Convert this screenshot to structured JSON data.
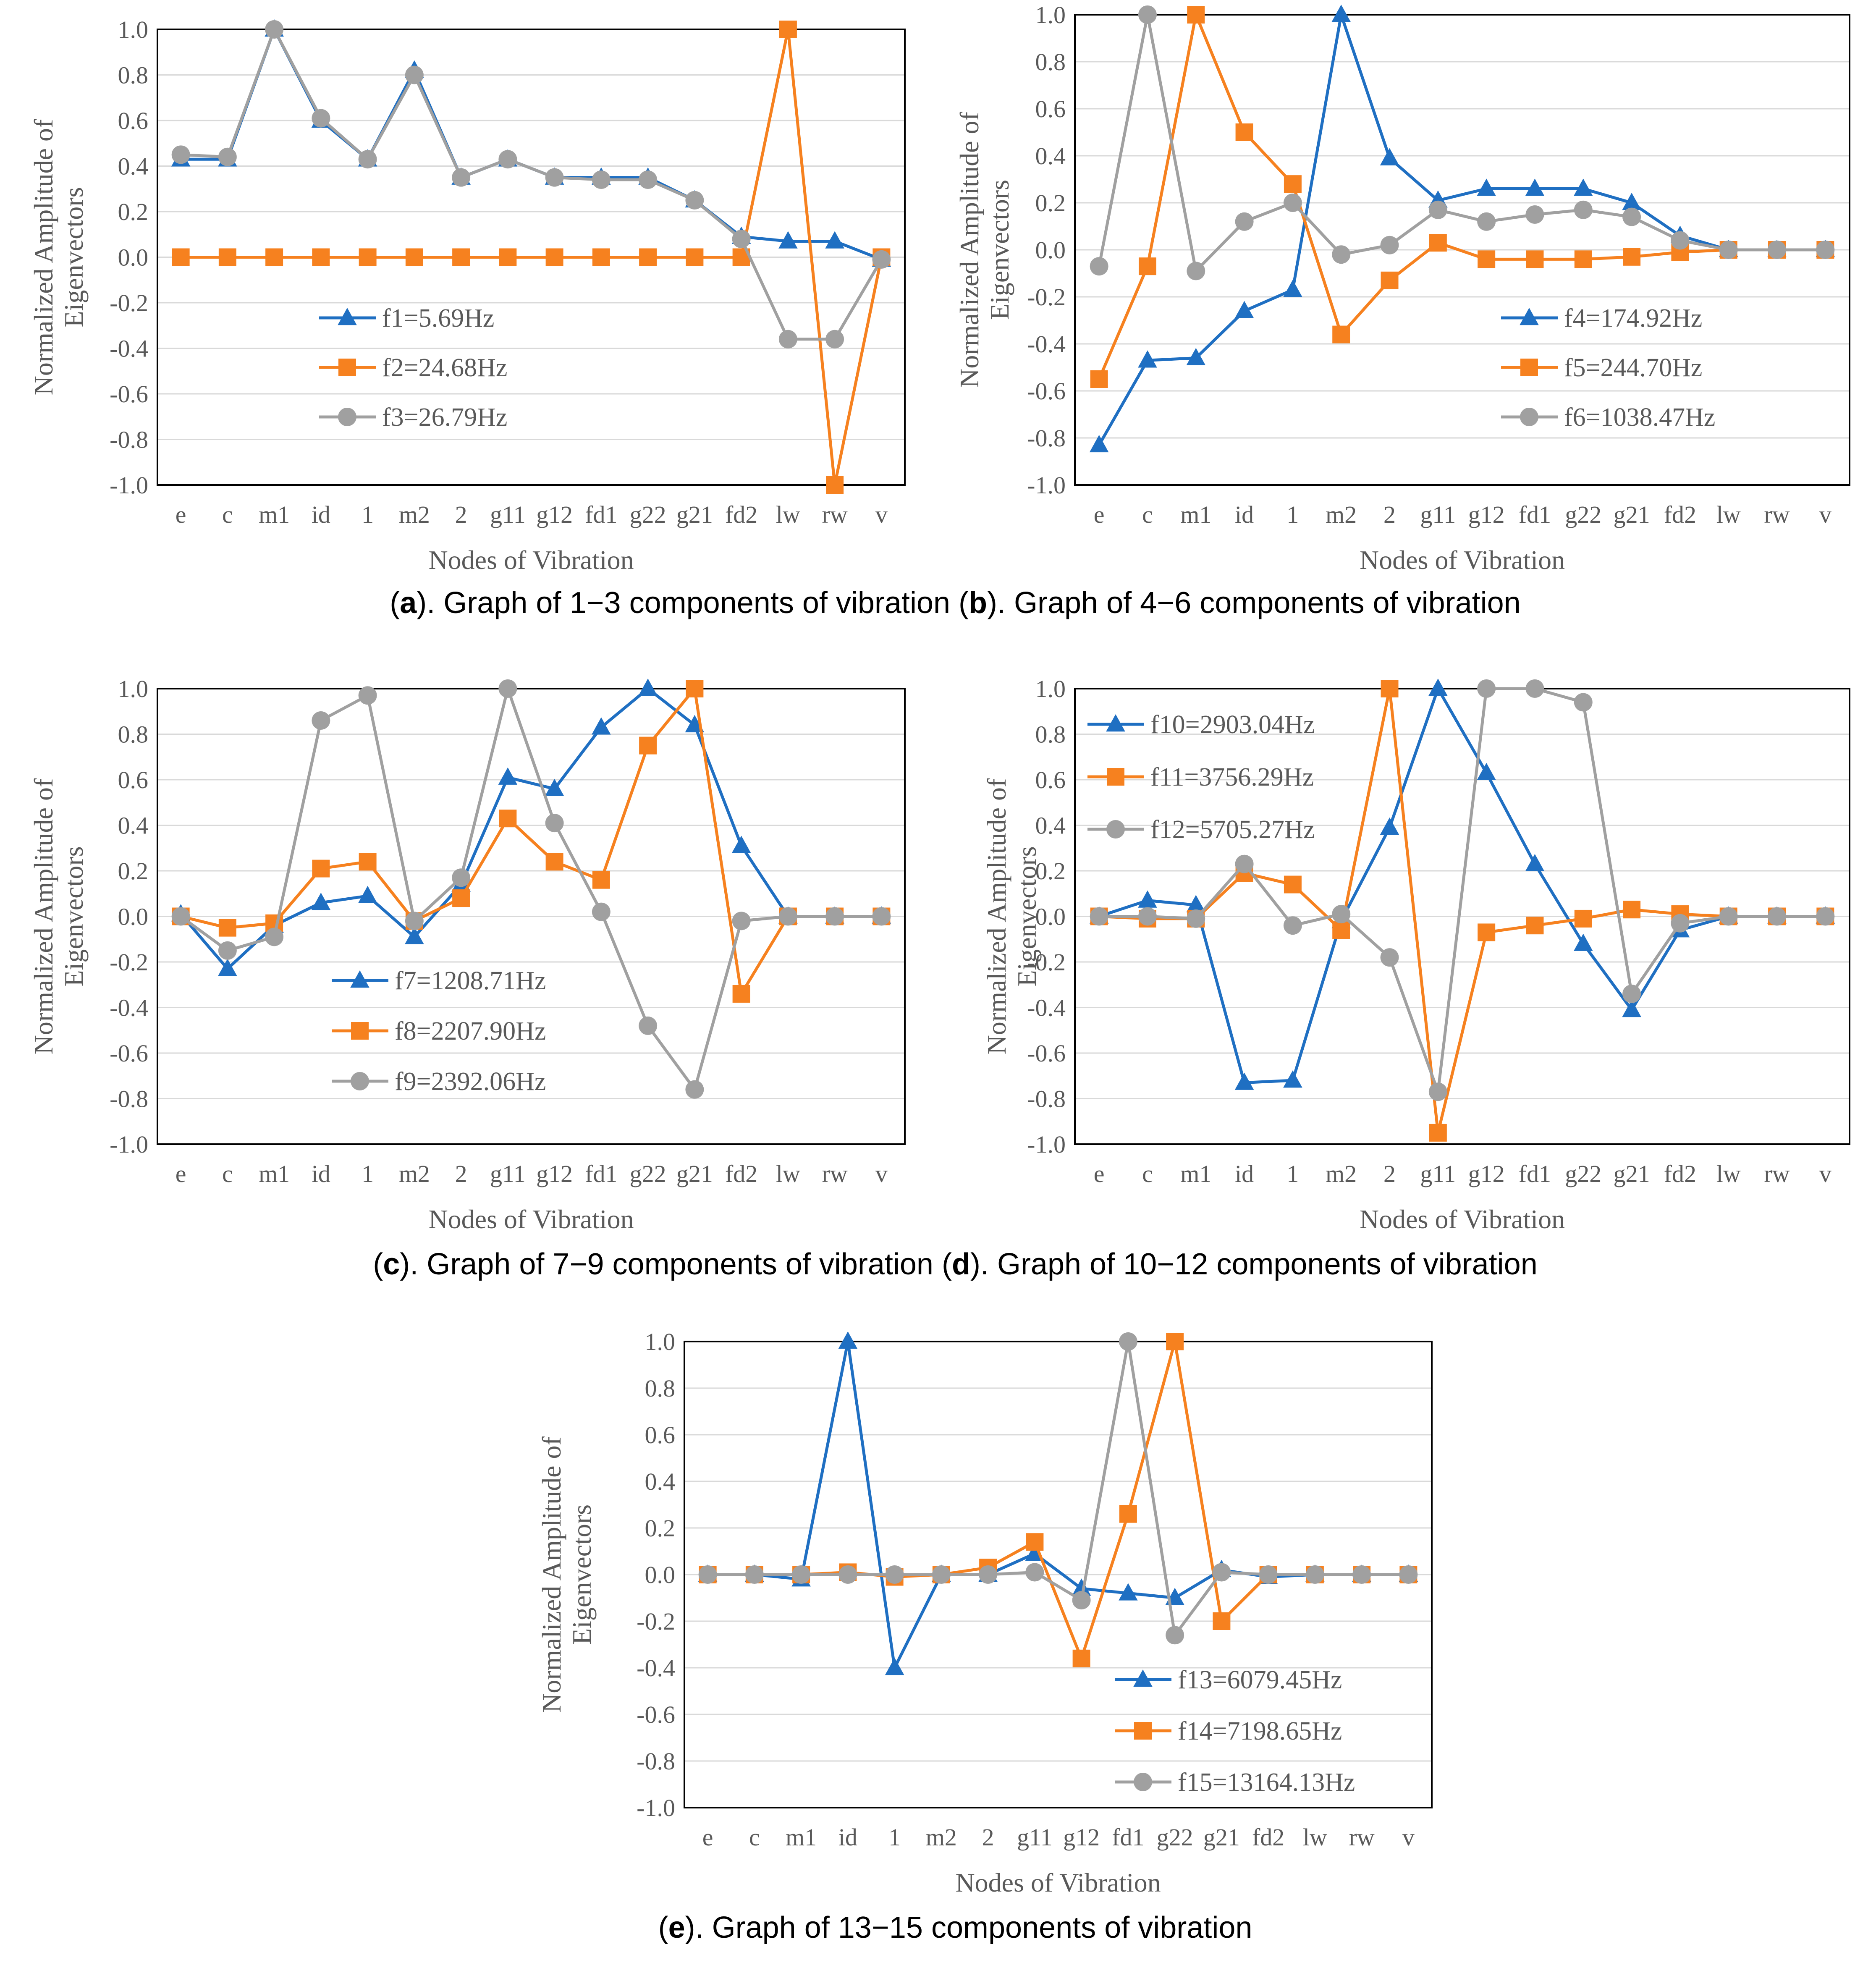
{
  "colors": {
    "series1": "#1F6FC2",
    "series2": "#F6811F",
    "series3": "#A0A0A0",
    "grid": "#D9D9D9",
    "frame": "#000000",
    "text": "#595959"
  },
  "chart_data": [
    {
      "id": "a",
      "type": "line",
      "caption": {
        "open": "(",
        "letter": "a",
        "text": "). Graph of 1−3 components of vibration"
      },
      "ylabel": [
        "Normalized Amplitude of",
        "Eigenvectors"
      ],
      "xlabel": "Nodes of Vibration",
      "ylim": [
        -1.0,
        1.0
      ],
      "yticks": [
        "1.0",
        "0.8",
        "0.6",
        "0.4",
        "0.2",
        "0.0",
        "-0.2",
        "-0.4",
        "-0.6",
        "-0.8",
        "-1.0"
      ],
      "categories": [
        "e",
        "c",
        "m1",
        "id",
        "1",
        "m2",
        "2",
        "g11",
        "g12",
        "fd1",
        "g22",
        "g21",
        "fd2",
        "lw",
        "rw",
        "v"
      ],
      "legend_position": "lower-left",
      "series": [
        {
          "name": "f1=5.69Hz",
          "marker": "triangle",
          "values": [
            0.43,
            0.43,
            1.0,
            0.6,
            0.43,
            0.82,
            0.35,
            0.43,
            0.35,
            0.35,
            0.35,
            0.25,
            0.09,
            0.07,
            0.07,
            -0.01
          ]
        },
        {
          "name": "f2=24.68Hz",
          "marker": "square",
          "values": [
            0.0,
            0.0,
            0.0,
            0.0,
            0.0,
            0.0,
            0.0,
            0.0,
            0.0,
            0.0,
            0.0,
            0.0,
            0.0,
            1.0,
            -1.0,
            0.0
          ]
        },
        {
          "name": "f3=26.79Hz",
          "marker": "circle",
          "values": [
            0.45,
            0.44,
            1.0,
            0.61,
            0.43,
            0.8,
            0.35,
            0.43,
            0.35,
            0.34,
            0.34,
            0.25,
            0.08,
            -0.36,
            -0.36,
            -0.01
          ]
        }
      ]
    },
    {
      "id": "b",
      "type": "line",
      "caption": {
        "open": " (",
        "letter": "b",
        "text": "). Graph of 4−6 components of vibration"
      },
      "ylabel": [
        "Normalized Amplitude of",
        "Eigenvectors"
      ],
      "xlabel": "Nodes of Vibration",
      "ylim": [
        -1.0,
        1.0
      ],
      "yticks": [
        "1.0",
        "0.8",
        "0.6",
        "0.4",
        "0.2",
        "0.0",
        "-0.2",
        "-0.4",
        "-0.6",
        "-0.8",
        "-1.0"
      ],
      "categories": [
        "e",
        "c",
        "m1",
        "id",
        "1",
        "m2",
        "2",
        "g11",
        "g12",
        "fd1",
        "g22",
        "g21",
        "fd2",
        "lw",
        "rw",
        "v"
      ],
      "legend_position": "lower-right",
      "series": [
        {
          "name": "f4=174.92Hz",
          "marker": "triangle",
          "values": [
            -0.83,
            -0.47,
            -0.46,
            -0.26,
            -0.17,
            1.0,
            0.39,
            0.21,
            0.26,
            0.26,
            0.26,
            0.2,
            0.06,
            0.0,
            0.0,
            0.0
          ]
        },
        {
          "name": "f5=244.70Hz",
          "marker": "square",
          "values": [
            -0.55,
            -0.07,
            1.0,
            0.5,
            0.28,
            -0.36,
            -0.13,
            0.03,
            -0.04,
            -0.04,
            -0.04,
            -0.03,
            -0.01,
            0.0,
            0.0,
            0.0
          ]
        },
        {
          "name": "f6=1038.47Hz",
          "marker": "circle",
          "values": [
            -0.07,
            1.0,
            -0.09,
            0.12,
            0.2,
            -0.02,
            0.02,
            0.17,
            0.12,
            0.15,
            0.17,
            0.14,
            0.04,
            0.0,
            0.0,
            0.0
          ]
        }
      ]
    },
    {
      "id": "c",
      "type": "line",
      "caption": {
        "open": "(",
        "letter": "c",
        "text": "). Graph of 7−9 components of vibration"
      },
      "ylabel": [
        "Normalized Amplitude of",
        "Eigenvectors"
      ],
      "xlabel": "Nodes of Vibration",
      "ylim": [
        -1.0,
        1.0
      ],
      "yticks": [
        "1.0",
        "0.8",
        "0.6",
        "0.4",
        "0.2",
        "0.0",
        "-0.2",
        "-0.4",
        "-0.6",
        "-0.8",
        "-1.0"
      ],
      "categories": [
        "e",
        "c",
        "m1",
        "id",
        "1",
        "m2",
        "2",
        "g11",
        "g12",
        "fd1",
        "g22",
        "g21",
        "fd2",
        "lw",
        "rw",
        "v"
      ],
      "legend_position": "lower-left",
      "series": [
        {
          "name": "f7=1208.71Hz",
          "marker": "triangle",
          "values": [
            0.01,
            -0.23,
            -0.04,
            0.06,
            0.09,
            -0.09,
            0.14,
            0.61,
            0.56,
            0.83,
            1.0,
            0.84,
            0.31,
            0.0,
            0.0,
            0.0
          ]
        },
        {
          "name": "f8=2207.90Hz",
          "marker": "square",
          "values": [
            0.0,
            -0.05,
            -0.03,
            0.21,
            0.24,
            -0.02,
            0.08,
            0.43,
            0.24,
            0.16,
            0.75,
            1.0,
            -0.34,
            0.0,
            0.0,
            0.0
          ]
        },
        {
          "name": "f9=2392.06Hz",
          "marker": "circle",
          "values": [
            0.0,
            -0.15,
            -0.09,
            0.86,
            0.97,
            -0.02,
            0.17,
            1.0,
            0.41,
            0.02,
            -0.48,
            -0.76,
            -0.02,
            0.0,
            0.0,
            0.0
          ]
        }
      ]
    },
    {
      "id": "d",
      "type": "line",
      "caption": {
        "open": " (",
        "letter": "d",
        "text": "). Graph of 10−12 components of vibration"
      },
      "ylabel": [
        "Normalized Amplitude of",
        "Eigenvectors"
      ],
      "xlabel": "Nodes of Vibration",
      "ylim": [
        -1.0,
        1.0
      ],
      "yticks": [
        "1.0",
        "0.8",
        "0.6",
        "0.4",
        "0.2",
        "0.0",
        "-0.2",
        "-0.4",
        "-0.6",
        "-0.8",
        "-1.0"
      ],
      "categories": [
        "e",
        "c",
        "m1",
        "id",
        "1",
        "m2",
        "2",
        "g11",
        "g12",
        "fd1",
        "g22",
        "g21",
        "fd2",
        "lw",
        "rw",
        "v"
      ],
      "legend_position": "upper-left",
      "series": [
        {
          "name": "f10=2903.04Hz",
          "marker": "triangle",
          "values": [
            0.0,
            0.07,
            0.05,
            -0.73,
            -0.72,
            -0.02,
            0.39,
            1.0,
            0.63,
            0.23,
            -0.12,
            -0.41,
            -0.06,
            0.0,
            0.0,
            0.0
          ]
        },
        {
          "name": "f11=3756.29Hz",
          "marker": "square",
          "values": [
            0.0,
            -0.01,
            -0.01,
            0.19,
            0.14,
            -0.06,
            1.0,
            -0.95,
            -0.07,
            -0.04,
            -0.01,
            0.03,
            0.01,
            0.0,
            0.0,
            0.0
          ]
        },
        {
          "name": "f12=5705.27Hz",
          "marker": "circle",
          "values": [
            0.0,
            0.0,
            -0.01,
            0.23,
            -0.04,
            0.01,
            -0.18,
            -0.77,
            1.0,
            1.0,
            0.94,
            -0.34,
            -0.03,
            0.0,
            0.0,
            0.0
          ]
        }
      ]
    },
    {
      "id": "e",
      "type": "line",
      "caption": {
        "open": "(",
        "letter": "e",
        "text": "). Graph of 13−15 components of vibration"
      },
      "ylabel": [
        "Normalized Amplitude of",
        "Eigenvectors"
      ],
      "xlabel": "Nodes of Vibration",
      "ylim": [
        -1.0,
        1.0
      ],
      "yticks": [
        "1.0",
        "0.8",
        "0.6",
        "0.4",
        "0.2",
        "0.0",
        "-0.2",
        "-0.4",
        "-0.6",
        "-0.8",
        "-1.0"
      ],
      "categories": [
        "e",
        "c",
        "m1",
        "id",
        "1",
        "m2",
        "2",
        "g11",
        "g12",
        "fd1",
        "g22",
        "g21",
        "fd2",
        "lw",
        "rw",
        "v"
      ],
      "legend_position": "lower-right",
      "series": [
        {
          "name": "f13=6079.45Hz",
          "marker": "triangle",
          "values": [
            0.0,
            0.0,
            -0.02,
            1.0,
            -0.4,
            0.0,
            0.0,
            0.09,
            -0.06,
            -0.08,
            -0.1,
            0.02,
            -0.01,
            0.0,
            0.0,
            0.0
          ]
        },
        {
          "name": "f14=7198.65Hz",
          "marker": "square",
          "values": [
            0.0,
            0.0,
            0.0,
            0.01,
            -0.01,
            0.0,
            0.03,
            0.14,
            -0.36,
            0.26,
            1.0,
            -0.2,
            0.0,
            0.0,
            0.0,
            0.0
          ]
        },
        {
          "name": "f15=13164.13Hz",
          "marker": "circle",
          "values": [
            0.0,
            0.0,
            0.0,
            0.0,
            0.0,
            0.0,
            0.0,
            0.01,
            -0.11,
            1.0,
            -0.26,
            0.01,
            0.0,
            0.0,
            0.0,
            0.0
          ]
        }
      ]
    }
  ]
}
